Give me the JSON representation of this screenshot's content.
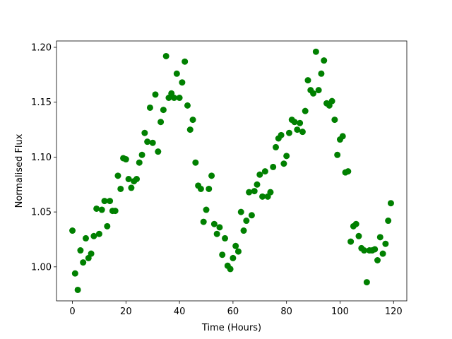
{
  "chart_data": {
    "type": "scatter",
    "x_label": "Time (Hours)",
    "y_label": "Normalised Flux",
    "xlim": [
      -5.95,
      124.95
    ],
    "xticks": [
      0,
      20,
      40,
      60,
      80,
      100,
      120
    ],
    "ylim": [
      0.969,
      1.2058
    ],
    "yticks": [
      {
        "value": 1.0,
        "label": "1.00"
      },
      {
        "value": 1.05,
        "label": "1.05"
      },
      {
        "value": 1.1,
        "label": "1.10"
      },
      {
        "value": 1.15,
        "label": "1.15"
      },
      {
        "value": 1.2,
        "label": "1.20"
      }
    ],
    "color": "#008000",
    "x": [
      0,
      1,
      2,
      3,
      4,
      5,
      6,
      7,
      8,
      9,
      10,
      11,
      12,
      13,
      14,
      15,
      16,
      17,
      18,
      19,
      20,
      21,
      22,
      23,
      24,
      25,
      26,
      27,
      28,
      29,
      30,
      31,
      32,
      33,
      34,
      35,
      36,
      37,
      38,
      39,
      40,
      41,
      42,
      43,
      44,
      45,
      46,
      47,
      48,
      49,
      50,
      51,
      52,
      53,
      54,
      55,
      56,
      57,
      58,
      59,
      60,
      61,
      62,
      63,
      64,
      65,
      66,
      67,
      68,
      69,
      70,
      71,
      72,
      73,
      74,
      75,
      76,
      77,
      78,
      79,
      80,
      81,
      82,
      83,
      84,
      85,
      86,
      87,
      88,
      89,
      90,
      91,
      92,
      93,
      94,
      95,
      96,
      97,
      98,
      99,
      100,
      101,
      102,
      103,
      104,
      105,
      106,
      107,
      108,
      109,
      110,
      111,
      112,
      113,
      114,
      115,
      116,
      117,
      118,
      119
    ],
    "values": [
      1.033,
      0.994,
      0.979,
      1.015,
      1.004,
      1.026,
      1.008,
      1.012,
      1.028,
      1.053,
      1.03,
      1.052,
      1.06,
      1.037,
      1.06,
      1.051,
      1.051,
      1.083,
      1.071,
      1.099,
      1.098,
      1.08,
      1.072,
      1.078,
      1.08,
      1.095,
      1.102,
      1.122,
      1.114,
      1.145,
      1.113,
      1.157,
      1.105,
      1.132,
      1.143,
      1.192,
      1.154,
      1.158,
      1.154,
      1.176,
      1.154,
      1.168,
      1.187,
      1.147,
      1.125,
      1.134,
      1.095,
      1.074,
      1.071,
      1.041,
      1.052,
      1.071,
      1.083,
      1.039,
      1.03,
      1.036,
      1.011,
      1.026,
      1.001,
      0.998,
      1.008,
      1.019,
      1.014,
      1.05,
      1.033,
      1.042,
      1.068,
      1.047,
      1.069,
      1.075,
      1.084,
      1.064,
      1.087,
      1.064,
      1.068,
      1.091,
      1.109,
      1.117,
      1.12,
      1.094,
      1.101,
      1.122,
      1.134,
      1.132,
      1.125,
      1.131,
      1.123,
      1.142,
      1.17,
      1.161,
      1.158,
      1.196,
      1.161,
      1.176,
      1.188,
      1.149,
      1.147,
      1.151,
      1.134,
      1.102,
      1.116,
      1.119,
      1.086,
      1.087,
      1.023,
      1.037,
      1.039,
      1.028,
      1.017,
      1.015,
      0.986,
      1.015,
      1.015,
      1.016,
      1.006,
      1.027,
      1.012,
      1.021,
      1.042,
      1.058
    ]
  }
}
